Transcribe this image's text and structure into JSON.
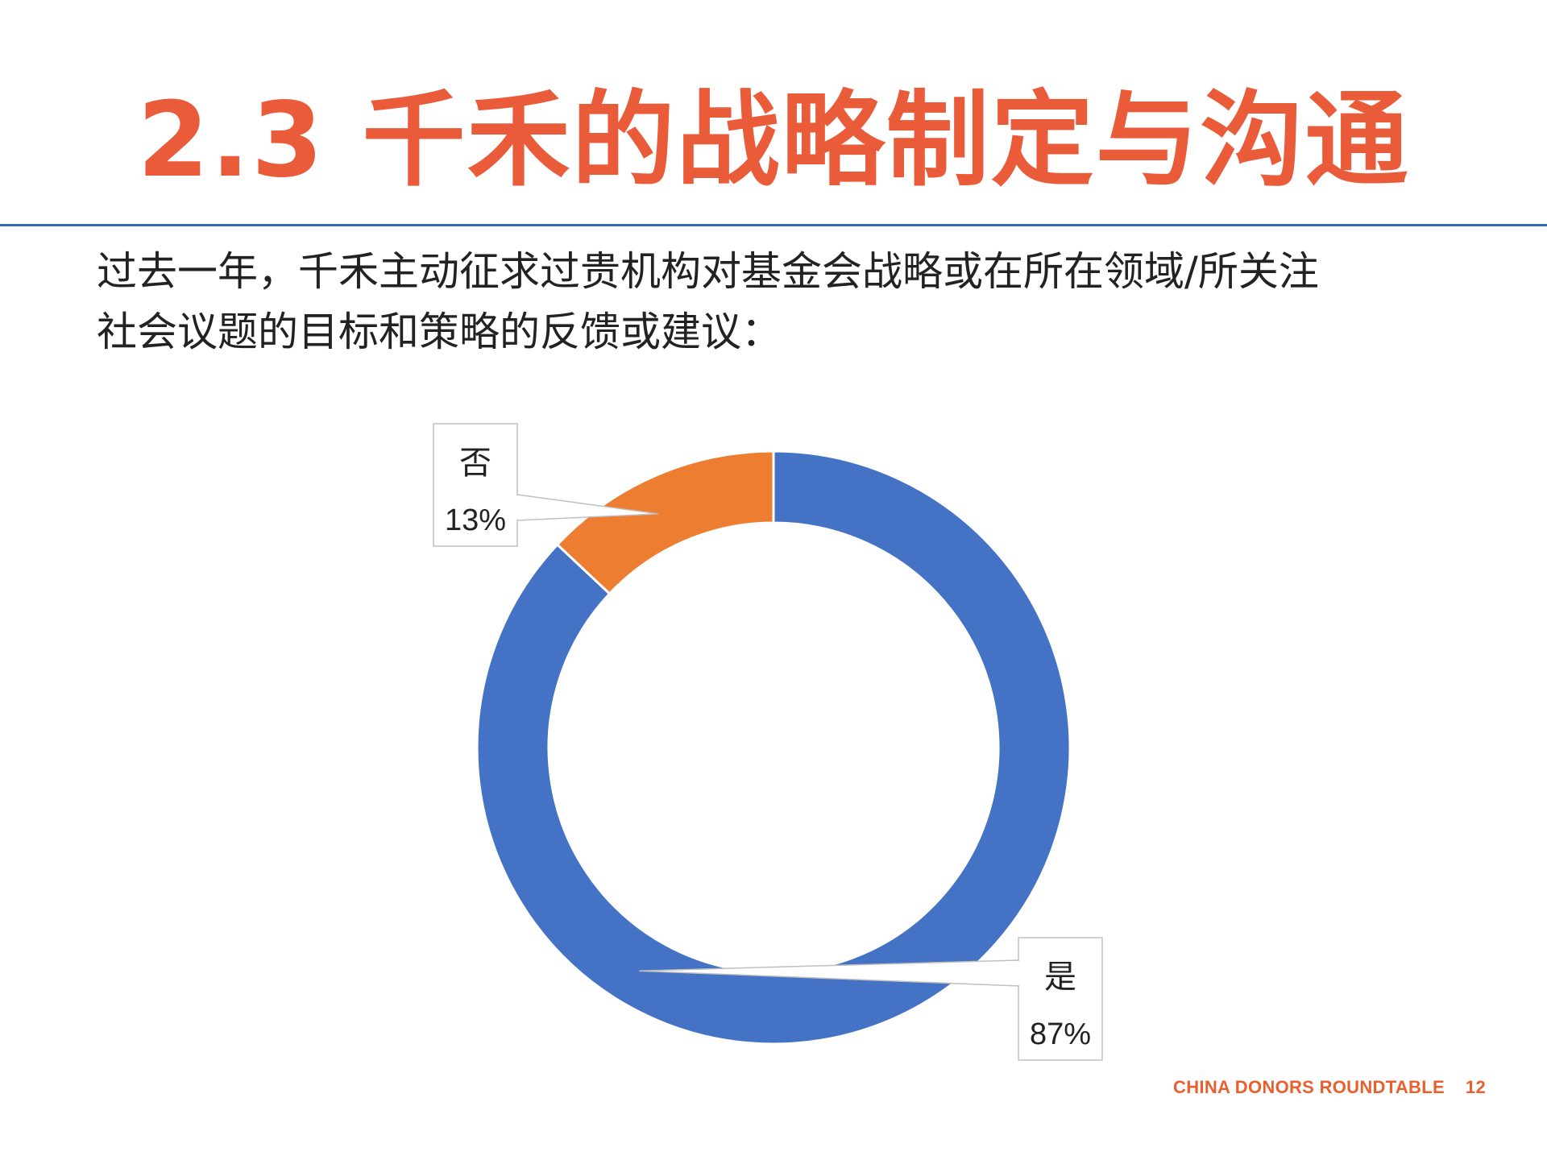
{
  "slide": {
    "title": "2.3 千禾的战略制定与沟通",
    "question_lines": [
      "过去一年，千禾主动征求过贵机构对基金会战略或在所在领域/所关注",
      "社会议题的目标和策略的反馈或建议："
    ],
    "footer_org": "CHINA DONORS ROUNDTABLE",
    "page_number": "12"
  },
  "colors": {
    "title": "#EA5B3A",
    "rule": "#2E6DB5",
    "yes": "#4472C4",
    "no": "#ED7D31",
    "footer": "#E8602E"
  },
  "chart_data": {
    "type": "pie",
    "donut": true,
    "slices": [
      {
        "label": "是",
        "percent": "87%",
        "value": 87,
        "color": "#4472C4"
      },
      {
        "label": "否",
        "percent": "13%",
        "value": 13,
        "color": "#ED7D31"
      }
    ],
    "start": "12 o'clock",
    "direction": "clockwise",
    "legend": "none"
  }
}
